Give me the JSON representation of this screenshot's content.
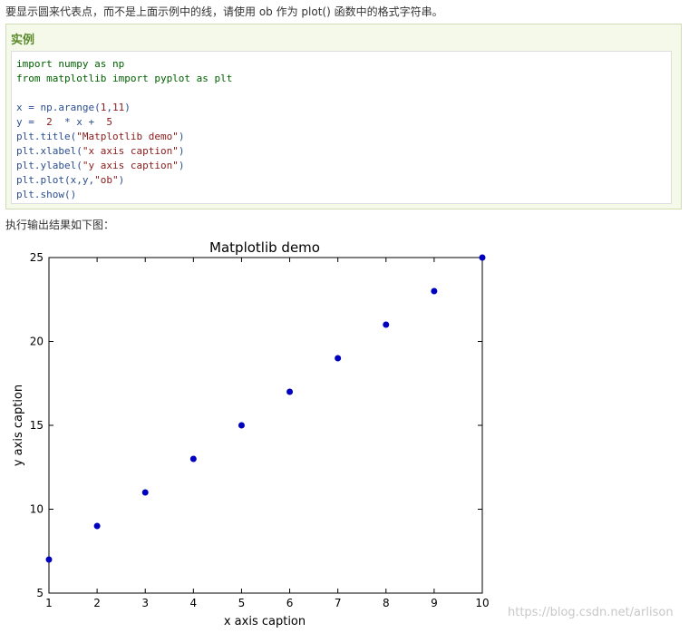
{
  "intro_text": "要显示圆来代表点，而不是上面示例中的线，请使用 ob 作为 plot() 函数中的格式字符串。",
  "example": {
    "title": "实例",
    "code_lines": [
      [
        {
          "t": "import numpy as np",
          "c": "kw"
        }
      ],
      [
        {
          "t": "from matplotlib import pyplot as plt",
          "c": "kw"
        }
      ],
      [
        {
          "t": "",
          "c": "plain"
        }
      ],
      [
        {
          "t": "x = np.arange(",
          "c": "plain"
        },
        {
          "t": "1",
          "c": "num"
        },
        {
          "t": ",",
          "c": "plain"
        },
        {
          "t": "11",
          "c": "num"
        },
        {
          "t": ")",
          "c": "plain"
        }
      ],
      [
        {
          "t": "y =  ",
          "c": "plain"
        },
        {
          "t": "2",
          "c": "num"
        },
        {
          "t": "  * x +  ",
          "c": "plain"
        },
        {
          "t": "5",
          "c": "num"
        }
      ],
      [
        {
          "t": "plt.title(",
          "c": "plain"
        },
        {
          "t": "\"Matplotlib demo\"",
          "c": "str"
        },
        {
          "t": ")",
          "c": "plain"
        }
      ],
      [
        {
          "t": "plt.xlabel(",
          "c": "plain"
        },
        {
          "t": "\"x axis caption\"",
          "c": "str"
        },
        {
          "t": ")",
          "c": "plain"
        }
      ],
      [
        {
          "t": "plt.ylabel(",
          "c": "plain"
        },
        {
          "t": "\"y axis caption\"",
          "c": "str"
        },
        {
          "t": ")",
          "c": "plain"
        }
      ],
      [
        {
          "t": "plt.plot(x,y,",
          "c": "plain"
        },
        {
          "t": "\"ob\"",
          "c": "str"
        },
        {
          "t": ")",
          "c": "plain"
        }
      ],
      [
        {
          "t": "plt.show()",
          "c": "plain"
        }
      ]
    ]
  },
  "result_label": "执行输出结果如下图：",
  "chart_data": {
    "type": "scatter",
    "title": "Matplotlib demo",
    "xlabel": "x axis caption",
    "ylabel": "y axis caption",
    "x": [
      1,
      2,
      3,
      4,
      5,
      6,
      7,
      8,
      9,
      10
    ],
    "y": [
      7,
      9,
      11,
      13,
      15,
      17,
      19,
      21,
      23,
      25
    ],
    "xlim": [
      1,
      10
    ],
    "ylim": [
      5,
      25
    ],
    "xticks": [
      "1",
      "2",
      "3",
      "4",
      "5",
      "6",
      "7",
      "8",
      "9",
      "10"
    ],
    "yticks": [
      "5",
      "10",
      "15",
      "20",
      "25"
    ],
    "marker_color": "#0000bf",
    "grid": false
  },
  "watermark": "https://blog.csdn.net/arlison",
  "colors": {
    "example_bg": "#f4f9ea",
    "example_border": "#cfdcb5",
    "example_title": "#5b8a2a"
  }
}
